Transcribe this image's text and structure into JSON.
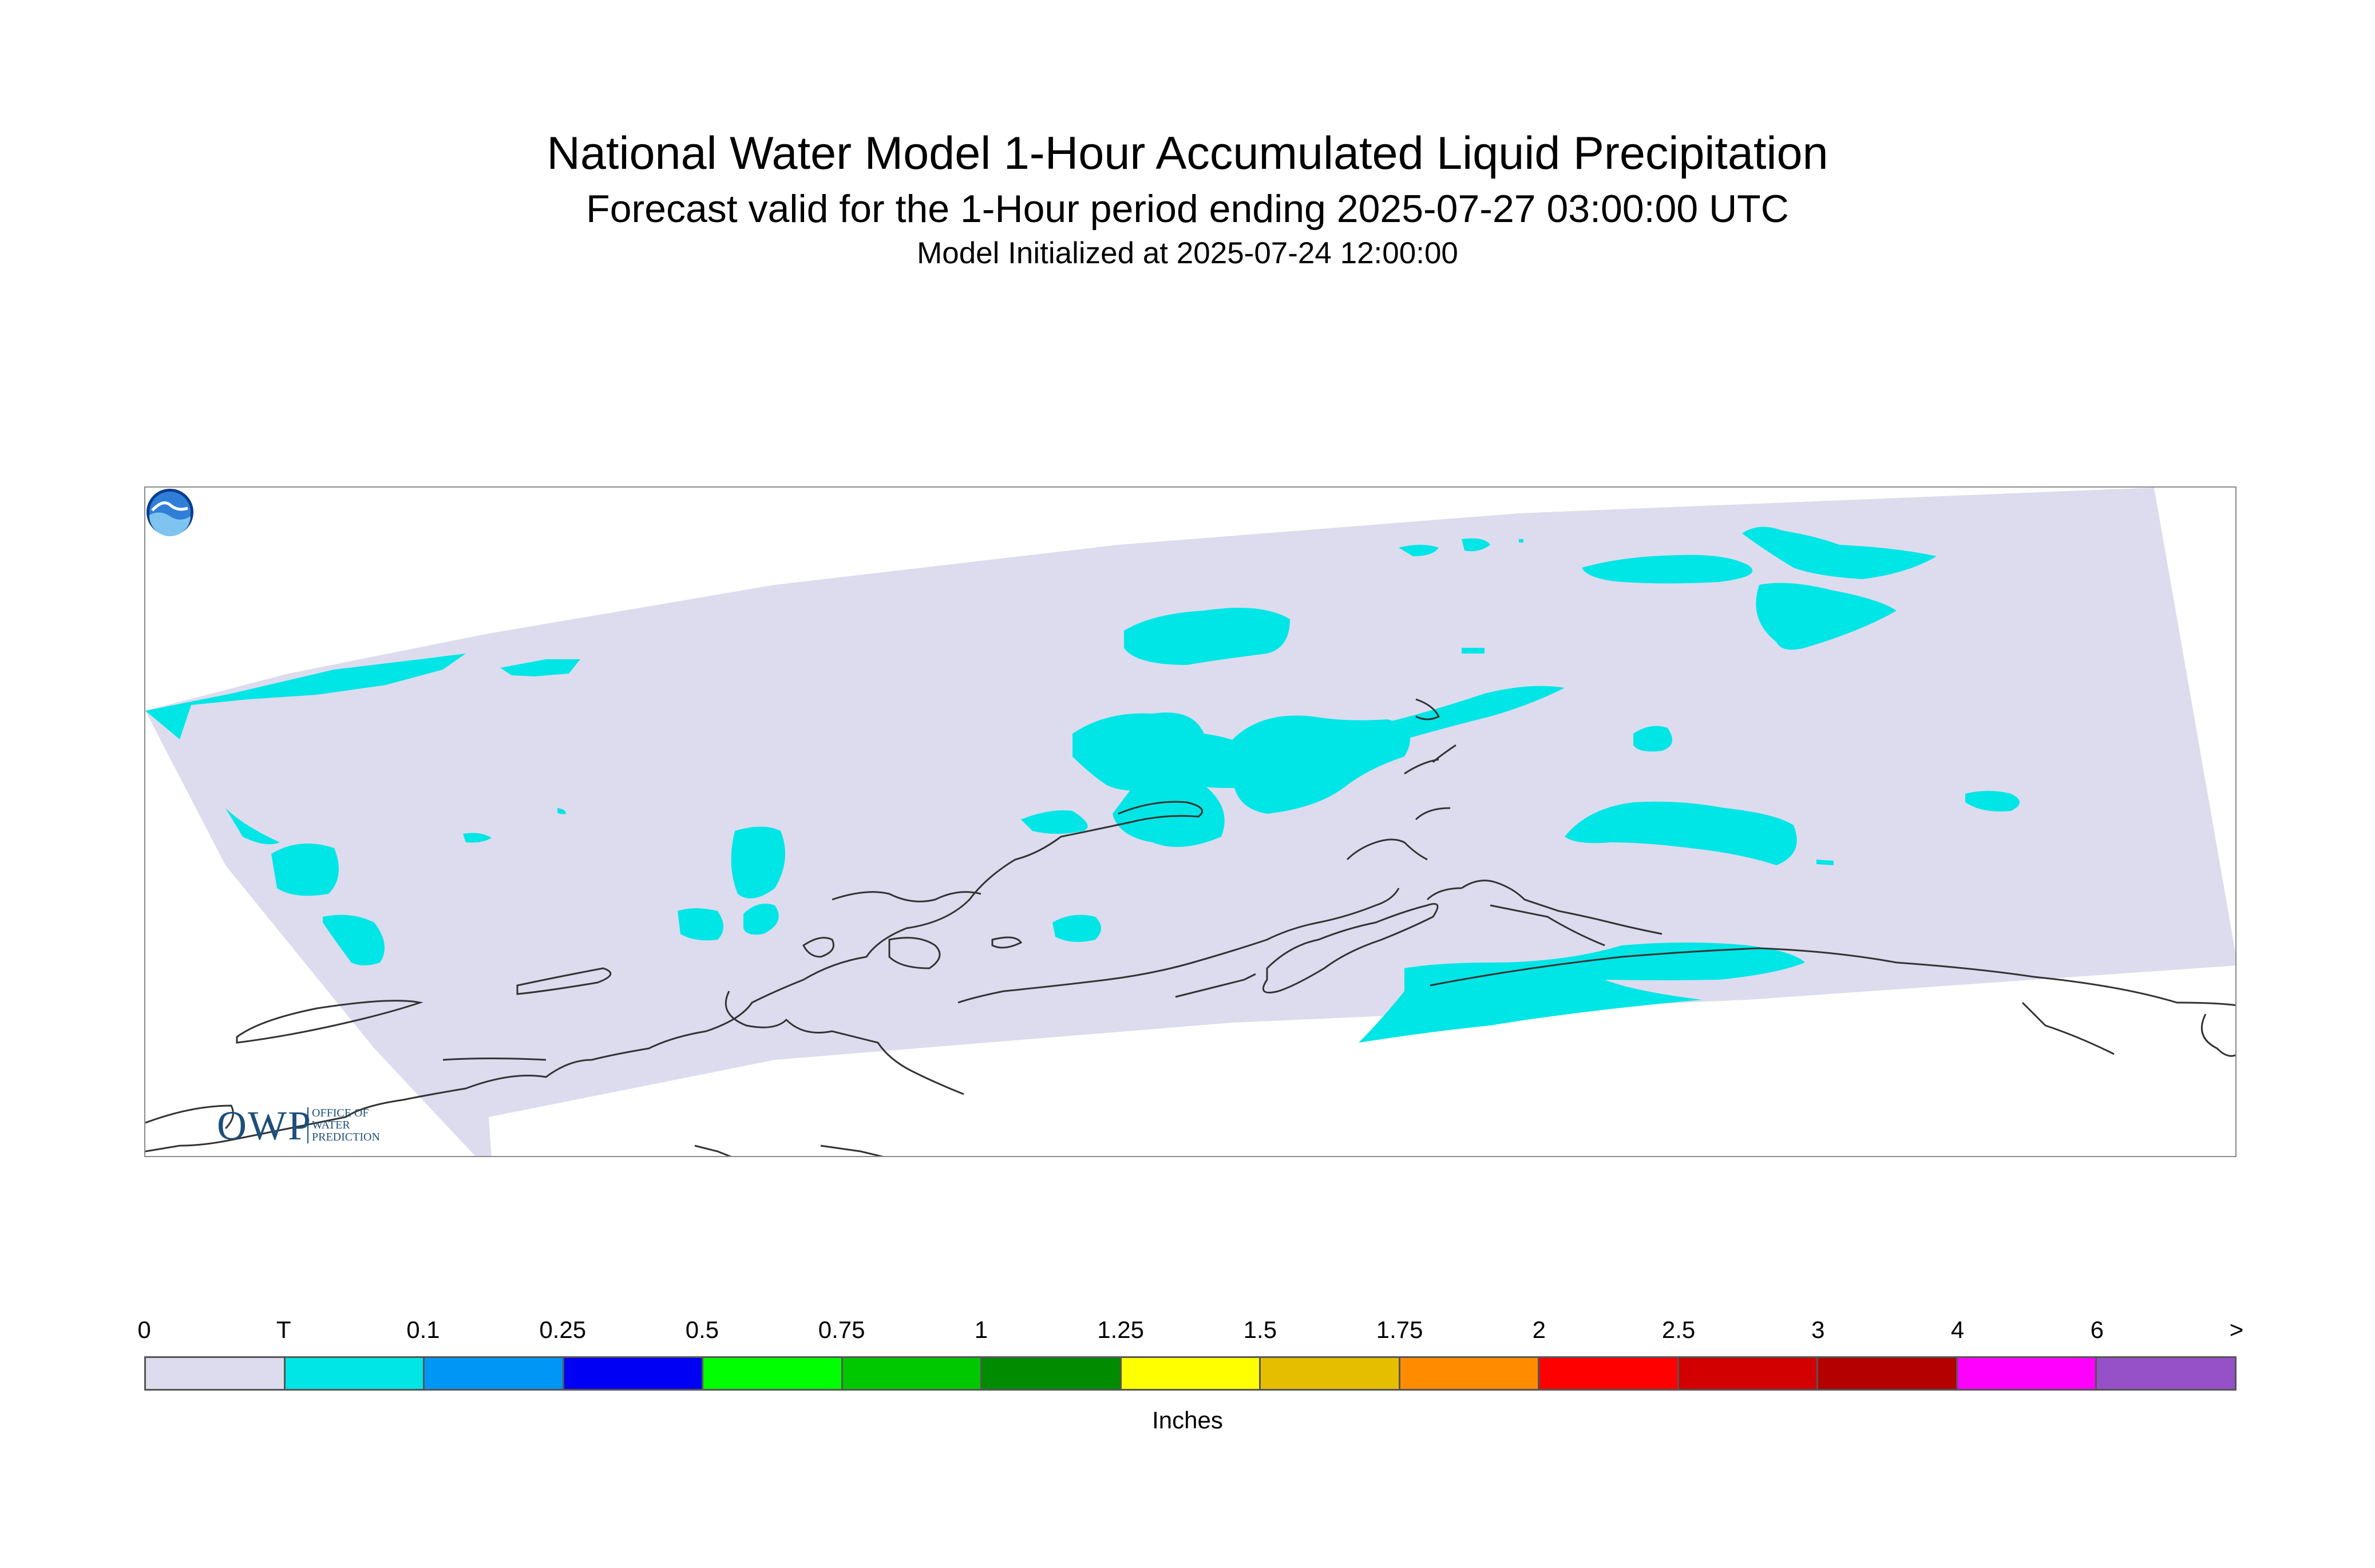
{
  "title": {
    "line1": "National Water Model 1-Hour Accumulated Liquid Precipitation",
    "line2": "Forecast valid for the 1-Hour period ending 2025-07-27 03:00:00 UTC",
    "line3": "Model Initialized at 2025-07-24 12:00:00"
  },
  "map": {
    "domain_fill_color": "#dcdcee",
    "precip_color": "#00e6e6",
    "coastline_color": "#333333",
    "icons": [
      "owp-logo",
      "noaa-logo"
    ]
  },
  "owp_logo": {
    "big": "OWP",
    "sub_lines": [
      "OFFICE OF",
      "WATER",
      "PREDICTION"
    ]
  },
  "colorbar": {
    "labels": [
      "0",
      "T",
      "0.1",
      "0.25",
      "0.5",
      "0.75",
      "1",
      "1.25",
      "1.5",
      "1.75",
      "2",
      "2.5",
      "3",
      "4",
      "6",
      ">"
    ],
    "colors": [
      "#dcdcee",
      "#00e6e6",
      "#0096f5",
      "#0000f5",
      "#00ff00",
      "#00c800",
      "#008c00",
      "#ffff00",
      "#e6be00",
      "#ff8c00",
      "#ff0000",
      "#d20000",
      "#b40000",
      "#ff00ff",
      "#9650c8"
    ],
    "units": "Inches"
  }
}
